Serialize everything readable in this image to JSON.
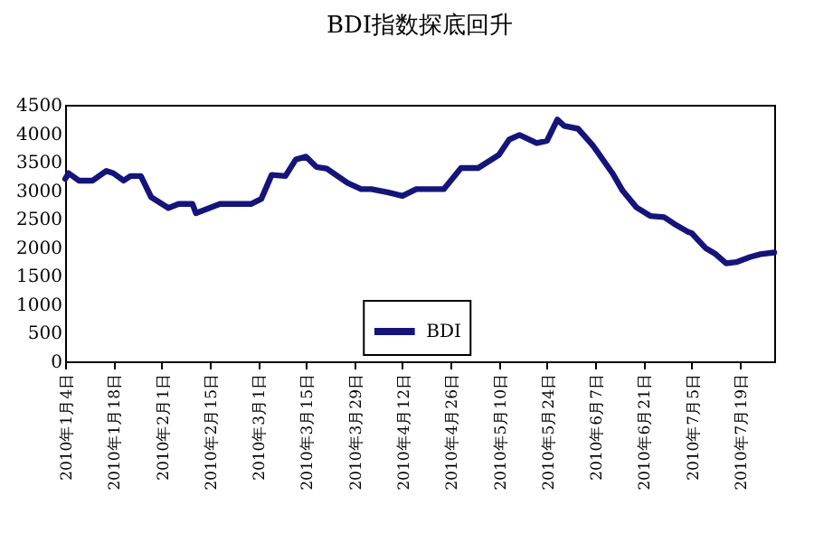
{
  "chart_data": {
    "type": "line",
    "title": "BDI指数探底回升",
    "x": [
      "2010-01-04",
      "2010-01-05",
      "2010-01-08",
      "2010-01-12",
      "2010-01-16",
      "2010-01-18",
      "2010-01-21",
      "2010-01-23",
      "2010-01-26",
      "2010-01-29",
      "2010-02-03",
      "2010-02-06",
      "2010-02-10",
      "2010-02-11",
      "2010-02-18",
      "2010-02-27",
      "2010-03-02",
      "2010-03-05",
      "2010-03-09",
      "2010-03-12",
      "2010-03-15",
      "2010-03-18",
      "2010-03-21",
      "2010-03-27",
      "2010-03-31",
      "2010-04-03",
      "2010-04-08",
      "2010-04-12",
      "2010-04-16",
      "2010-04-24",
      "2010-04-29",
      "2010-05-04",
      "2010-05-10",
      "2010-05-13",
      "2010-05-16",
      "2010-05-21",
      "2010-05-24",
      "2010-05-27",
      "2010-05-29",
      "2010-06-02",
      "2010-06-06",
      "2010-06-07",
      "2010-06-12",
      "2010-06-15",
      "2010-06-19",
      "2010-06-23",
      "2010-06-27",
      "2010-06-30",
      "2010-07-04",
      "2010-07-05",
      "2010-07-09",
      "2010-07-12",
      "2010-07-15",
      "2010-07-18",
      "2010-07-22",
      "2010-07-25",
      "2010-07-29"
    ],
    "series": [
      {
        "name": "BDI",
        "color": "#14147a",
        "values": [
          3200,
          3300,
          3170,
          3170,
          3340,
          3300,
          3170,
          3250,
          3250,
          2880,
          2690,
          2760,
          2760,
          2600,
          2760,
          2760,
          2850,
          3270,
          3250,
          3540,
          3590,
          3410,
          3380,
          3130,
          3020,
          3020,
          2960,
          2900,
          3020,
          3020,
          3390,
          3390,
          3620,
          3890,
          3970,
          3830,
          3870,
          4240,
          4130,
          4080,
          3810,
          3730,
          3300,
          2990,
          2700,
          2550,
          2530,
          2410,
          2270,
          2250,
          1990,
          1880,
          1720,
          1740,
          1830,
          1880,
          1910
        ]
      }
    ],
    "xlim": [
      "2010-01-04",
      "2010-07-29"
    ],
    "xticks": [
      {
        "value": "2010-01-04",
        "label": "2010年1月4日"
      },
      {
        "value": "2010-01-18",
        "label": "2010年1月18日"
      },
      {
        "value": "2010-02-01",
        "label": "2010年2月1日"
      },
      {
        "value": "2010-02-15",
        "label": "2010年2月15日"
      },
      {
        "value": "2010-03-01",
        "label": "2010年3月1日"
      },
      {
        "value": "2010-03-15",
        "label": "2010年3月15日"
      },
      {
        "value": "2010-03-29",
        "label": "2010年3月29日"
      },
      {
        "value": "2010-04-12",
        "label": "2010年4月12日"
      },
      {
        "value": "2010-04-26",
        "label": "2010年4月26日"
      },
      {
        "value": "2010-05-10",
        "label": "2010年5月10日"
      },
      {
        "value": "2010-05-24",
        "label": "2010年5月24日"
      },
      {
        "value": "2010-06-07",
        "label": "2010年6月7日"
      },
      {
        "value": "2010-06-21",
        "label": "2010年6月21日"
      },
      {
        "value": "2010-07-05",
        "label": "2010年7月5日"
      },
      {
        "value": "2010-07-19",
        "label": "2010年7月19日"
      }
    ],
    "ylim": [
      0,
      4500
    ],
    "yticks": [
      0,
      500,
      1000,
      1500,
      2000,
      2500,
      3000,
      3500,
      4000,
      4500
    ],
    "grid": false,
    "legend": "bottom",
    "line_style": "solid",
    "marker": "none"
  }
}
